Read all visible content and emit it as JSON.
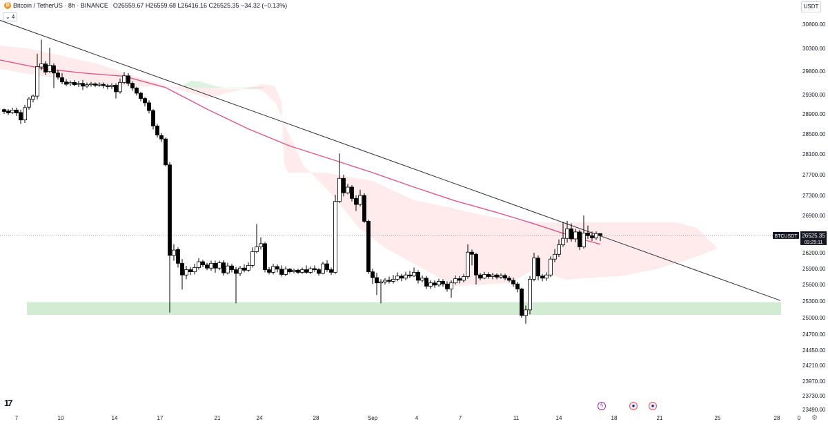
{
  "header": {
    "symbol_title": "Bitcoin / TetherUS · 8h · BINANCE",
    "ohlc": "O26559.67 H26559.68 L26416.16 C26525.35 −34.32 (−0.13%)"
  },
  "indicator_toggle": "⌄ 4",
  "currency_button": "USDT",
  "price_label": {
    "symbol": "BTCUSDT",
    "price": "26525.35",
    "countdown": "03:25:11"
  },
  "logo_text": "17",
  "chart_data": {
    "type": "candlestick",
    "y_ticks": [
      "30800.00",
      "30300.00",
      "29800.00",
      "29300.00",
      "28900.00",
      "28500.00",
      "28100.00",
      "27700.00",
      "27300.00",
      "26900.00",
      "26200.00",
      "25900.00",
      "25600.00",
      "25300.00",
      "25000.00",
      "24700.00",
      "24450.00",
      "24210.00",
      "23970.00",
      "23730.00",
      "23490.00"
    ],
    "x_ticks": [
      "7",
      "10",
      "14",
      "17",
      "21",
      "24",
      "28",
      "Sep",
      "4",
      "7",
      "11",
      "14",
      "18",
      "21",
      "25",
      "28",
      "0"
    ],
    "last_price": 26525.35,
    "support_zone": [
      25050,
      25280
    ],
    "trendline": [
      [
        -2,
        30890
      ],
      [
        1131,
        25310
      ]
    ],
    "moving_average": [
      [
        -2,
        30050
      ],
      [
        60,
        29860
      ],
      [
        120,
        29760
      ],
      [
        180,
        29690
      ],
      [
        240,
        29450
      ],
      [
        300,
        29000
      ],
      [
        360,
        28600
      ],
      [
        420,
        28260
      ],
      [
        480,
        28000
      ],
      [
        540,
        27740
      ],
      [
        600,
        27460
      ],
      [
        660,
        27190
      ],
      [
        720,
        26960
      ],
      [
        770,
        26760
      ],
      [
        810,
        26590
      ],
      [
        850,
        26430
      ],
      [
        870,
        26360
      ]
    ],
    "candles": [
      [
        6,
        28990,
        28950,
        29010,
        28900
      ],
      [
        12,
        28960,
        28920,
        29000,
        28880
      ],
      [
        18,
        28930,
        28980,
        29030,
        28900
      ],
      [
        24,
        28980,
        28920,
        29030,
        28860
      ],
      [
        30,
        28930,
        28780,
        28990,
        28700
      ],
      [
        36,
        28780,
        29030,
        29090,
        28720
      ],
      [
        42,
        29040,
        29210,
        29250,
        28990
      ],
      [
        48,
        29200,
        29270,
        29300,
        29140
      ],
      [
        54,
        29270,
        29900,
        30180,
        29200
      ],
      [
        60,
        29890,
        29960,
        30480,
        29820
      ],
      [
        66,
        29960,
        29780,
        30020,
        29720
      ],
      [
        72,
        29790,
        29930,
        30310,
        29760
      ],
      [
        78,
        29920,
        29760,
        29970,
        29440
      ],
      [
        84,
        29760,
        29670,
        29830,
        29620
      ],
      [
        90,
        29660,
        29570,
        29760,
        29520
      ],
      [
        96,
        29570,
        29520,
        29630,
        29480
      ],
      [
        102,
        29530,
        29560,
        29600,
        29490
      ],
      [
        108,
        29560,
        29510,
        29610,
        29480
      ],
      [
        114,
        29520,
        29540,
        29590,
        29460
      ],
      [
        120,
        29540,
        29480,
        29610,
        29400
      ],
      [
        126,
        29480,
        29510,
        29560,
        29440
      ],
      [
        132,
        29510,
        29530,
        29570,
        29470
      ],
      [
        138,
        29530,
        29500,
        29560,
        29460
      ],
      [
        144,
        29500,
        29520,
        29560,
        29470
      ],
      [
        150,
        29520,
        29490,
        29560,
        29430
      ],
      [
        156,
        29490,
        29470,
        29530,
        29410
      ],
      [
        162,
        29470,
        29500,
        29540,
        29420
      ],
      [
        168,
        29500,
        29360,
        29540,
        29220
      ],
      [
        174,
        29360,
        29560,
        29640,
        29320
      ],
      [
        180,
        29560,
        29700,
        29780,
        29520
      ],
      [
        186,
        29700,
        29540,
        29760,
        29480
      ],
      [
        192,
        29540,
        29440,
        29580,
        29380
      ],
      [
        198,
        29440,
        29330,
        29470,
        29280
      ],
      [
        204,
        29330,
        29220,
        29360,
        29160
      ],
      [
        210,
        29220,
        29130,
        29250,
        29060
      ],
      [
        216,
        29130,
        28970,
        29180,
        28910
      ],
      [
        222,
        28970,
        28660,
        29000,
        28590
      ],
      [
        228,
        28660,
        28480,
        28700,
        28430
      ],
      [
        234,
        28470,
        28400,
        28520,
        28340
      ],
      [
        240,
        28400,
        27890,
        28430,
        27860
      ],
      [
        246,
        27890,
        26150,
        27940,
        25090
      ],
      [
        252,
        26150,
        26250,
        26360,
        26050
      ],
      [
        258,
        26260,
        26000,
        26300,
        25920
      ],
      [
        264,
        26000,
        25780,
        26080,
        25510
      ],
      [
        270,
        25780,
        25880,
        25950,
        25700
      ],
      [
        276,
        25880,
        25840,
        25930,
        25780
      ],
      [
        282,
        25840,
        25920,
        25990,
        25790
      ],
      [
        288,
        25920,
        26030,
        26100,
        25880
      ],
      [
        294,
        26030,
        25970,
        26070,
        25930
      ],
      [
        300,
        25970,
        25910,
        26010,
        25870
      ],
      [
        306,
        25910,
        26000,
        26050,
        25860
      ],
      [
        312,
        26000,
        25910,
        26050,
        25820
      ],
      [
        318,
        25910,
        26010,
        26050,
        25870
      ],
      [
        324,
        26010,
        25820,
        26060,
        25770
      ],
      [
        330,
        25820,
        25950,
        26010,
        25790
      ],
      [
        336,
        25950,
        25880,
        25990,
        25830
      ],
      [
        342,
        25880,
        25810,
        25930,
        25260
      ],
      [
        348,
        25810,
        25910,
        25950,
        25760
      ],
      [
        354,
        25910,
        25870,
        25980,
        25830
      ],
      [
        360,
        25870,
        25960,
        26020,
        25840
      ],
      [
        366,
        25960,
        26220,
        26300,
        25920
      ],
      [
        372,
        26220,
        26310,
        26740,
        26190
      ],
      [
        378,
        26310,
        26370,
        26490,
        26260
      ],
      [
        384,
        26370,
        25880,
        26400,
        25830
      ],
      [
        390,
        25880,
        25830,
        25930,
        25790
      ],
      [
        396,
        25830,
        25940,
        25990,
        25790
      ],
      [
        402,
        25940,
        25890,
        25980,
        25830
      ],
      [
        408,
        25890,
        25790,
        25960,
        25750
      ],
      [
        414,
        25790,
        25890,
        25940,
        25760
      ],
      [
        420,
        25890,
        25840,
        25910,
        25810
      ],
      [
        426,
        25840,
        25870,
        25900,
        25810
      ],
      [
        432,
        25870,
        25830,
        25900,
        25800
      ],
      [
        438,
        25830,
        25880,
        25920,
        25800
      ],
      [
        444,
        25880,
        25830,
        25960,
        25800
      ],
      [
        450,
        25830,
        25900,
        25940,
        25800
      ],
      [
        456,
        25900,
        25880,
        25960,
        25840
      ],
      [
        462,
        25880,
        25810,
        25910,
        25770
      ],
      [
        468,
        25810,
        25990,
        26030,
        25790
      ],
      [
        474,
        25990,
        25880,
        26060,
        25840
      ],
      [
        480,
        25880,
        25830,
        25920,
        25780
      ],
      [
        486,
        25830,
        27180,
        27310,
        25800
      ],
      [
        492,
        27180,
        27630,
        28110,
        27150
      ],
      [
        498,
        27630,
        27350,
        27700,
        27280
      ],
      [
        504,
        27350,
        27460,
        27520,
        27320
      ],
      [
        510,
        27460,
        27240,
        27500,
        27180
      ],
      [
        516,
        27240,
        27120,
        27300,
        26990
      ],
      [
        522,
        27120,
        27300,
        27410,
        27080
      ],
      [
        528,
        27300,
        26790,
        27340,
        26760
      ],
      [
        534,
        26790,
        25840,
        26820,
        25800
      ],
      [
        540,
        25840,
        25730,
        25900,
        25610
      ],
      [
        546,
        25730,
        25630,
        25820,
        25410
      ],
      [
        552,
        25630,
        25650,
        25700,
        25260
      ],
      [
        558,
        25650,
        25680,
        25720,
        25600
      ],
      [
        564,
        25680,
        25660,
        25750,
        25620
      ],
      [
        570,
        25660,
        25700,
        25780,
        25620
      ],
      [
        576,
        25700,
        25760,
        25830,
        25660
      ],
      [
        582,
        25760,
        25720,
        25800,
        25660
      ],
      [
        588,
        25720,
        25780,
        25840,
        25680
      ],
      [
        594,
        25780,
        25760,
        25860,
        25720
      ],
      [
        600,
        25760,
        25830,
        25920,
        25740
      ],
      [
        606,
        25830,
        25680,
        25870,
        25620
      ],
      [
        612,
        25680,
        25720,
        25770,
        25640
      ],
      [
        618,
        25720,
        25570,
        25760,
        25520
      ],
      [
        624,
        25570,
        25630,
        25680,
        25520
      ],
      [
        630,
        25630,
        25590,
        25680,
        25540
      ],
      [
        636,
        25590,
        25660,
        25710,
        25560
      ],
      [
        642,
        25660,
        25610,
        25700,
        25560
      ],
      [
        648,
        25610,
        25520,
        25660,
        25470
      ],
      [
        654,
        25520,
        25630,
        25680,
        25360
      ],
      [
        660,
        25630,
        25710,
        25770,
        25600
      ],
      [
        666,
        25710,
        25680,
        25760,
        25620
      ],
      [
        672,
        25680,
        25750,
        25800,
        25640
      ],
      [
        678,
        25750,
        26210,
        26360,
        25710
      ],
      [
        684,
        26210,
        26170,
        26260,
        25960
      ],
      [
        690,
        26170,
        25780,
        26200,
        25600
      ],
      [
        696,
        25780,
        25720,
        25820,
        25680
      ],
      [
        702,
        25720,
        25790,
        25840,
        25700
      ],
      [
        708,
        25790,
        25750,
        25830,
        25710
      ],
      [
        714,
        25750,
        25780,
        25820,
        25700
      ],
      [
        720,
        25780,
        25740,
        25810,
        25700
      ],
      [
        726,
        25740,
        25770,
        25810,
        25710
      ],
      [
        732,
        25770,
        25720,
        25800,
        25680
      ],
      [
        738,
        25720,
        25680,
        25760,
        25640
      ],
      [
        744,
        25680,
        25610,
        25730,
        25560
      ],
      [
        750,
        25610,
        25520,
        25650,
        25460
      ],
      [
        756,
        25520,
        25040,
        25540,
        25000
      ],
      [
        762,
        25040,
        25140,
        25220,
        24890
      ],
      [
        768,
        25140,
        25700,
        25760,
        25060
      ],
      [
        774,
        25700,
        26100,
        26200,
        25660
      ],
      [
        780,
        26100,
        25760,
        26150,
        25680
      ],
      [
        786,
        25760,
        25720,
        25800,
        25660
      ],
      [
        792,
        25720,
        25780,
        25830,
        25670
      ],
      [
        798,
        25780,
        26080,
        26130,
        25740
      ],
      [
        804,
        26080,
        26170,
        26270,
        26020
      ],
      [
        810,
        26170,
        26350,
        26450,
        26120
      ],
      [
        816,
        26350,
        26470,
        26780,
        26310
      ],
      [
        822,
        26470,
        26650,
        26800,
        26390
      ],
      [
        828,
        26650,
        26460,
        26750,
        26410
      ],
      [
        834,
        26460,
        26590,
        26650,
        26400
      ],
      [
        840,
        26590,
        26310,
        26630,
        26250
      ],
      [
        846,
        26310,
        26570,
        26900,
        26280
      ],
      [
        852,
        26570,
        26520,
        26710,
        26460
      ],
      [
        858,
        26520,
        26480,
        26600,
        26420
      ],
      [
        864,
        26480,
        26560,
        26600,
        26440
      ],
      [
        870,
        26560,
        26525,
        26560,
        26420
      ]
    ]
  }
}
